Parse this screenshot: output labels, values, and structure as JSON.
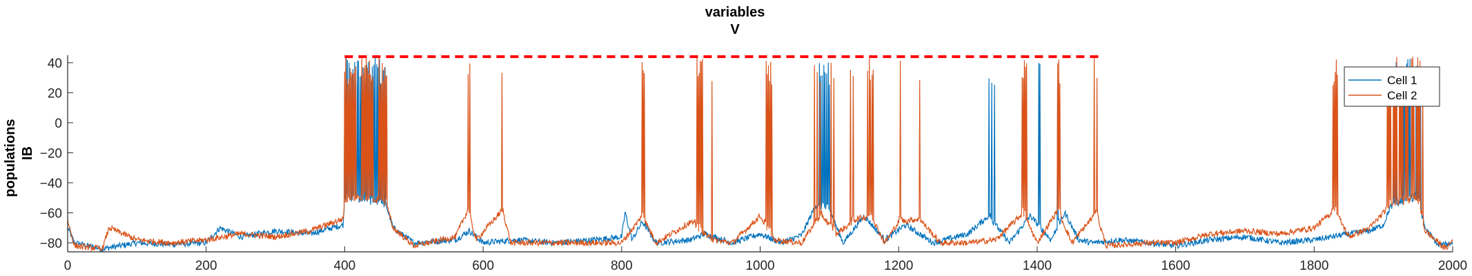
{
  "chart_data": {
    "type": "line",
    "title_lines": [
      "variables",
      "V"
    ],
    "ylabel_lines": [
      "populations",
      "IB"
    ],
    "xlabel": "",
    "xlim": [
      0,
      2000
    ],
    "ylim": [
      -86,
      45
    ],
    "xticks": [
      0,
      200,
      400,
      600,
      800,
      1000,
      1200,
      1400,
      1600,
      1800,
      2000
    ],
    "yticks": [
      -80,
      -60,
      -40,
      -20,
      0,
      20,
      40
    ],
    "grid": false,
    "legend": {
      "position": "top-right",
      "entries": [
        {
          "name": "Cell 1",
          "color": "#0072BD"
        },
        {
          "name": "Cell 2",
          "color": "#D95319"
        }
      ]
    },
    "series": [
      {
        "name": "Cell 1",
        "color": "#0072BD",
        "baseline": [
          [
            0,
            -70
          ],
          [
            10,
            -80
          ],
          [
            50,
            -84
          ],
          [
            100,
            -80
          ],
          [
            150,
            -81
          ],
          [
            200,
            -80
          ],
          [
            220,
            -70
          ],
          [
            250,
            -76
          ],
          [
            300,
            -72
          ],
          [
            350,
            -74
          ],
          [
            398,
            -68
          ],
          [
            400,
            -50
          ],
          [
            430,
            -52
          ],
          [
            460,
            -55
          ],
          [
            470,
            -70
          ],
          [
            500,
            -80
          ],
          [
            560,
            -78
          ],
          [
            580,
            -72
          ],
          [
            600,
            -80
          ],
          [
            650,
            -78
          ],
          [
            700,
            -80
          ],
          [
            760,
            -78
          ],
          [
            800,
            -76
          ],
          [
            805,
            -60
          ],
          [
            815,
            -78
          ],
          [
            830,
            -66
          ],
          [
            850,
            -80
          ],
          [
            900,
            -78
          ],
          [
            920,
            -74
          ],
          [
            960,
            -80
          ],
          [
            1000,
            -74
          ],
          [
            1030,
            -80
          ],
          [
            1060,
            -75
          ],
          [
            1080,
            -55
          ],
          [
            1100,
            -58
          ],
          [
            1120,
            -80
          ],
          [
            1150,
            -62
          ],
          [
            1180,
            -78
          ],
          [
            1210,
            -68
          ],
          [
            1250,
            -80
          ],
          [
            1300,
            -74
          ],
          [
            1330,
            -62
          ],
          [
            1360,
            -80
          ],
          [
            1390,
            -62
          ],
          [
            1420,
            -78
          ],
          [
            1440,
            -60
          ],
          [
            1460,
            -78
          ],
          [
            1480,
            -80
          ],
          [
            1520,
            -78
          ],
          [
            1560,
            -80
          ],
          [
            1600,
            -82
          ],
          [
            1650,
            -78
          ],
          [
            1700,
            -76
          ],
          [
            1750,
            -80
          ],
          [
            1800,
            -78
          ],
          [
            1850,
            -74
          ],
          [
            1880,
            -72
          ],
          [
            1900,
            -68
          ],
          [
            1910,
            -56
          ],
          [
            1950,
            -50
          ],
          [
            1960,
            -70
          ],
          [
            1980,
            -82
          ],
          [
            2000,
            -80
          ]
        ],
        "bursts": [
          [
            400,
            460,
            30
          ],
          [
            805,
            807,
            2
          ],
          [
            1085,
            1102,
            8
          ],
          [
            1330,
            1340,
            5
          ],
          [
            1402,
            1405,
            2
          ],
          [
            1428,
            1432,
            3
          ],
          [
            1915,
            1955,
            24
          ]
        ]
      },
      {
        "name": "Cell 2",
        "color": "#D95319",
        "baseline": [
          [
            0,
            -65
          ],
          [
            10,
            -82
          ],
          [
            50,
            -84
          ],
          [
            60,
            -70
          ],
          [
            100,
            -78
          ],
          [
            150,
            -80
          ],
          [
            200,
            -78
          ],
          [
            250,
            -74
          ],
          [
            300,
            -76
          ],
          [
            350,
            -72
          ],
          [
            398,
            -64
          ],
          [
            400,
            -52
          ],
          [
            430,
            -50
          ],
          [
            460,
            -54
          ],
          [
            470,
            -70
          ],
          [
            500,
            -82
          ],
          [
            560,
            -76
          ],
          [
            578,
            -58
          ],
          [
            590,
            -78
          ],
          [
            628,
            -58
          ],
          [
            640,
            -80
          ],
          [
            700,
            -80
          ],
          [
            760,
            -80
          ],
          [
            800,
            -80
          ],
          [
            830,
            -62
          ],
          [
            850,
            -80
          ],
          [
            900,
            -66
          ],
          [
            930,
            -78
          ],
          [
            960,
            -80
          ],
          [
            1000,
            -62
          ],
          [
            1020,
            -78
          ],
          [
            1060,
            -80
          ],
          [
            1080,
            -66
          ],
          [
            1090,
            -62
          ],
          [
            1110,
            -74
          ],
          [
            1140,
            -64
          ],
          [
            1160,
            -62
          ],
          [
            1180,
            -80
          ],
          [
            1200,
            -66
          ],
          [
            1230,
            -64
          ],
          [
            1260,
            -80
          ],
          [
            1300,
            -80
          ],
          [
            1340,
            -78
          ],
          [
            1380,
            -60
          ],
          [
            1400,
            -80
          ],
          [
            1430,
            -58
          ],
          [
            1450,
            -80
          ],
          [
            1485,
            -60
          ],
          [
            1500,
            -82
          ],
          [
            1560,
            -80
          ],
          [
            1600,
            -80
          ],
          [
            1650,
            -74
          ],
          [
            1700,
            -72
          ],
          [
            1750,
            -74
          ],
          [
            1800,
            -70
          ],
          [
            1830,
            -58
          ],
          [
            1850,
            -76
          ],
          [
            1880,
            -70
          ],
          [
            1900,
            -60
          ],
          [
            1910,
            -54
          ],
          [
            1950,
            -52
          ],
          [
            1960,
            -72
          ],
          [
            1990,
            -84
          ],
          [
            2000,
            -78
          ]
        ],
        "bursts": [
          [
            400,
            462,
            40
          ],
          [
            578,
            582,
            3
          ],
          [
            627,
            630,
            3
          ],
          [
            828,
            834,
            4
          ],
          [
            905,
            918,
            8
          ],
          [
            928,
            932,
            2
          ],
          [
            1005,
            1018,
            8
          ],
          [
            1078,
            1090,
            6
          ],
          [
            1102,
            1110,
            4
          ],
          [
            1130,
            1138,
            4
          ],
          [
            1155,
            1165,
            5
          ],
          [
            1200,
            1206,
            3
          ],
          [
            1228,
            1232,
            2
          ],
          [
            1378,
            1386,
            5
          ],
          [
            1428,
            1434,
            4
          ],
          [
            1482,
            1488,
            3
          ],
          [
            1825,
            1835,
            6
          ],
          [
            1905,
            1958,
            30
          ]
        ]
      }
    ],
    "annotations": [
      {
        "type": "dashed-line",
        "x": [
          400,
          1490
        ],
        "y": 44,
        "color": "#FF0000"
      }
    ]
  }
}
